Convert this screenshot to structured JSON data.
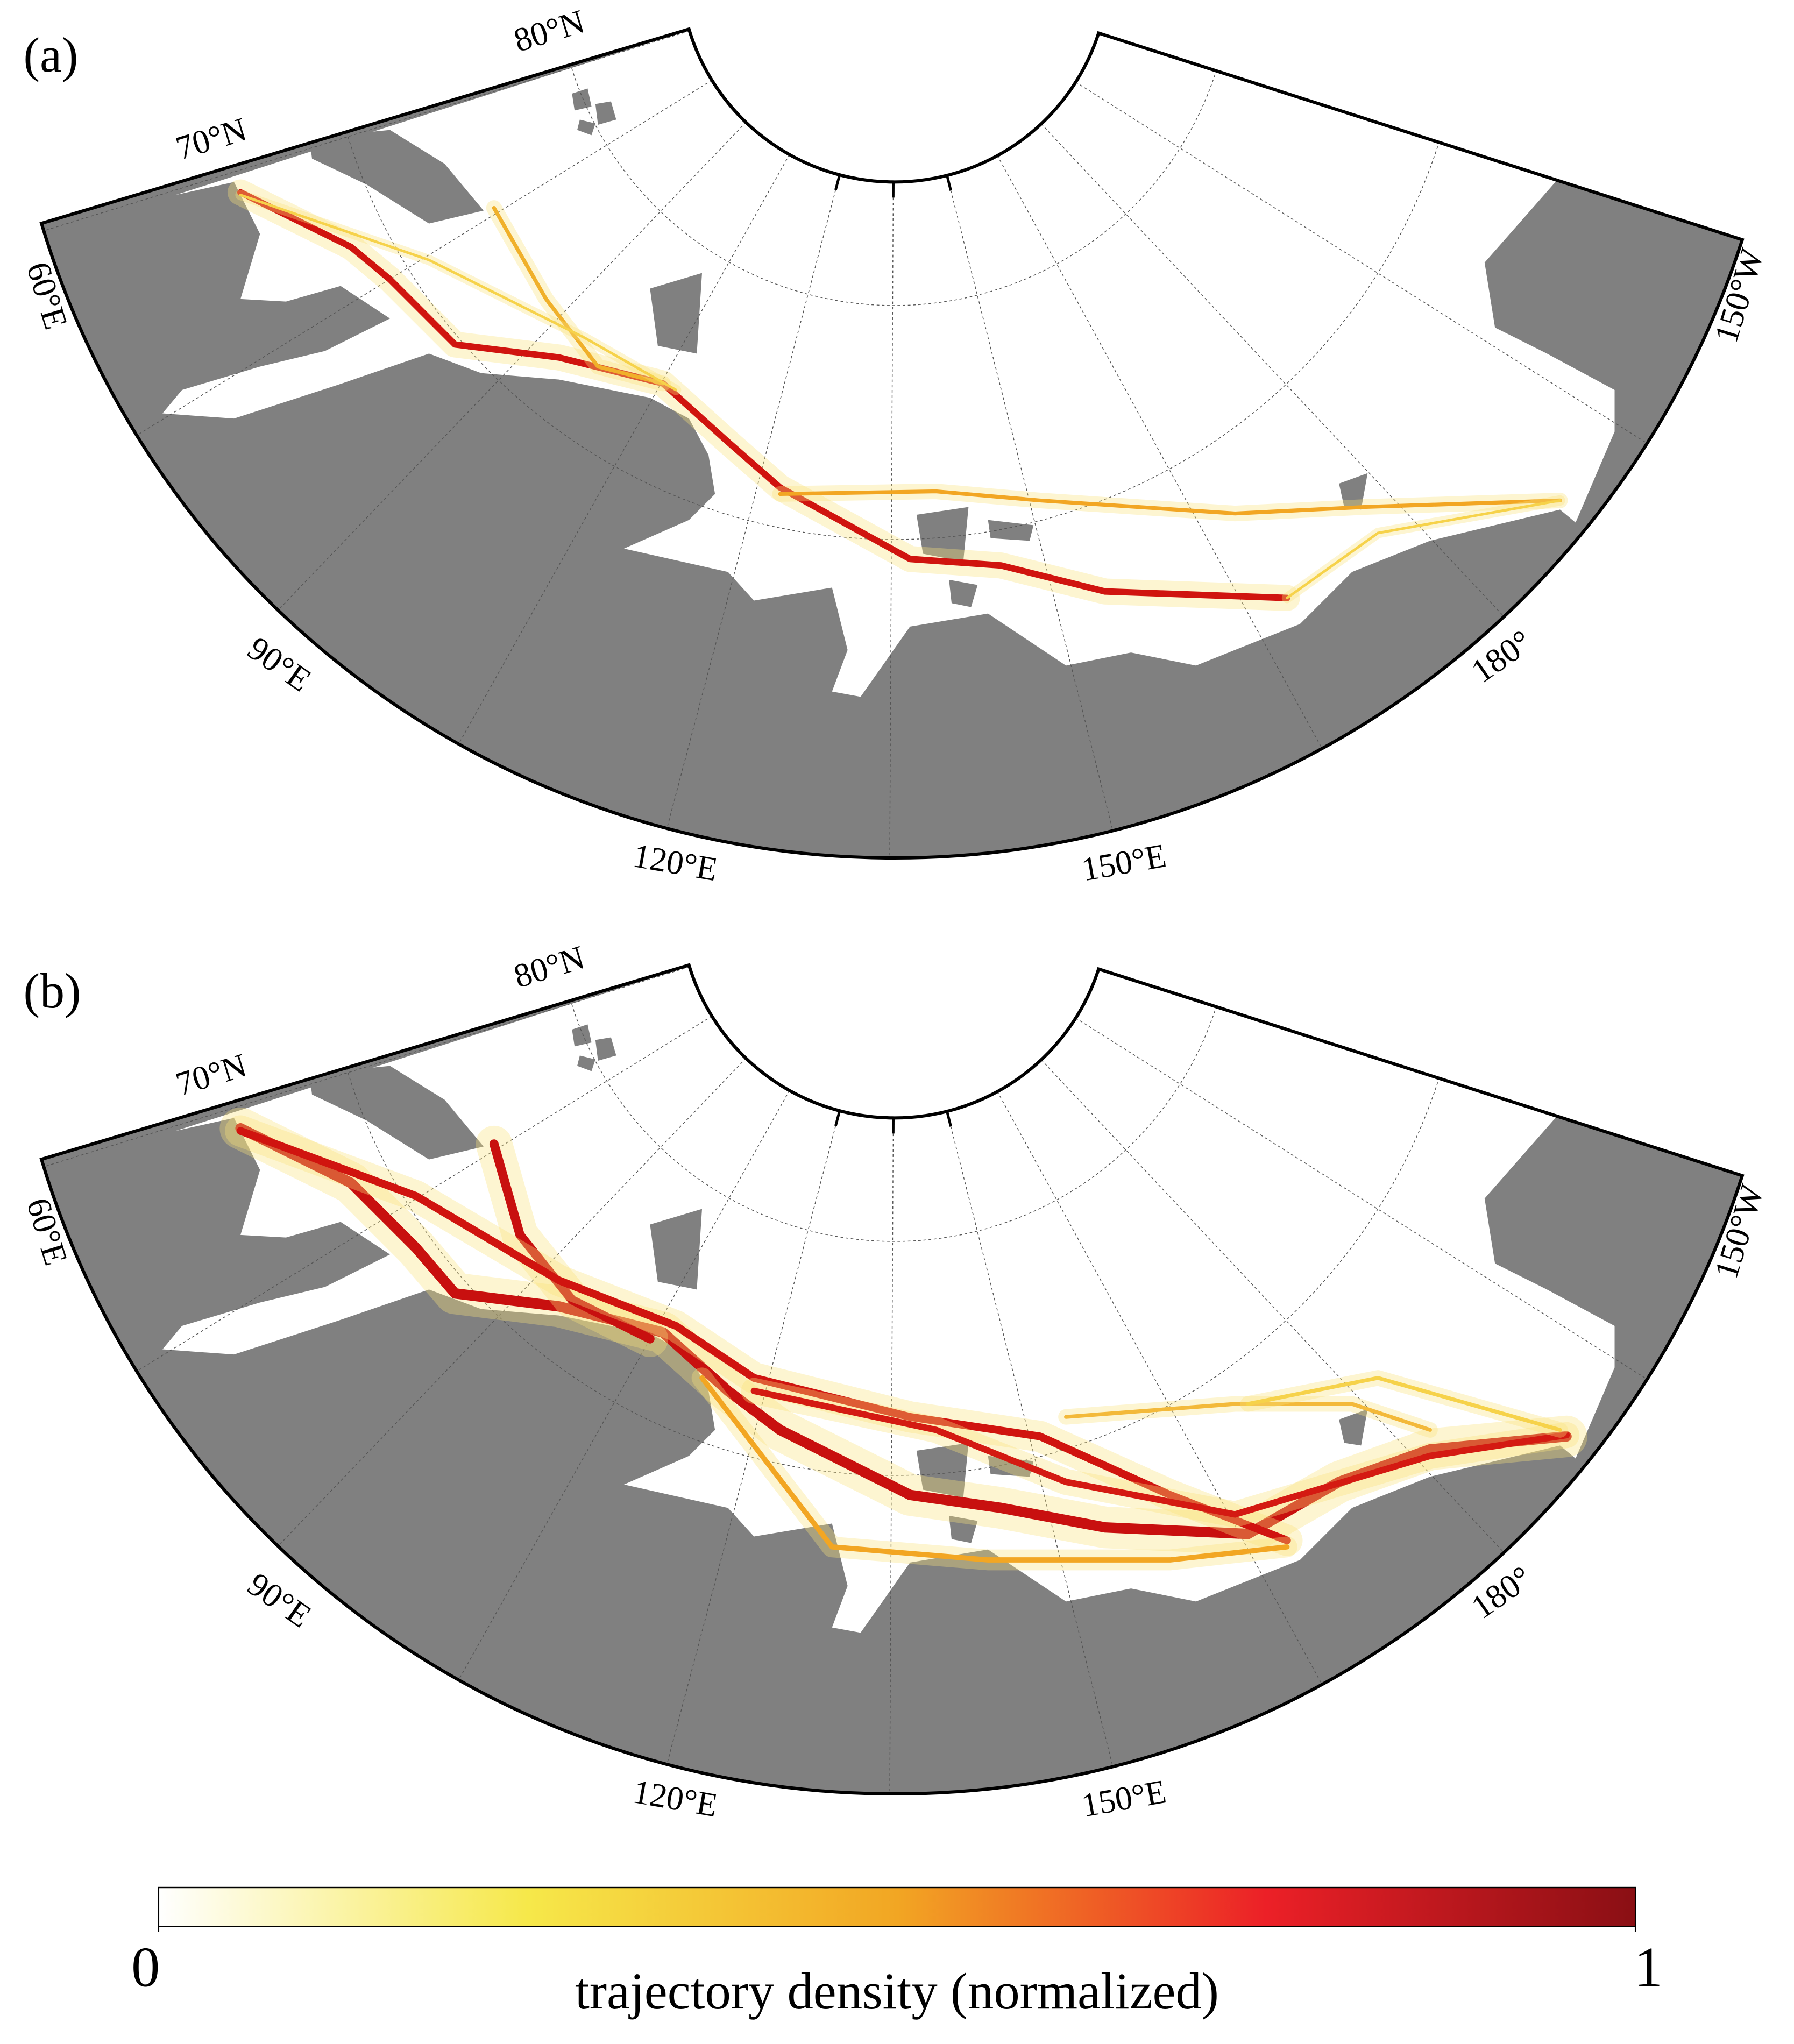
{
  "panels": [
    {
      "label": "(a)",
      "lat_labels": [
        "70°N",
        "80°N"
      ],
      "lon_labels": [
        "60°E",
        "90°E",
        "120°E",
        "150°E",
        "180°",
        "150°W"
      ]
    },
    {
      "label": "(b)",
      "lat_labels": [
        "70°N",
        "80°N"
      ],
      "lon_labels": [
        "60°E",
        "90°E",
        "120°E",
        "150°E",
        "180°",
        "150°W"
      ]
    }
  ],
  "colorbar": {
    "label": "trajectory density (normalized)",
    "lim": [
      0,
      1
    ],
    "ticks": [
      0,
      1
    ],
    "colors": [
      "#ffffff",
      "#f6e84a",
      "#f2a623",
      "#ec2027",
      "#8a0f14"
    ]
  }
}
